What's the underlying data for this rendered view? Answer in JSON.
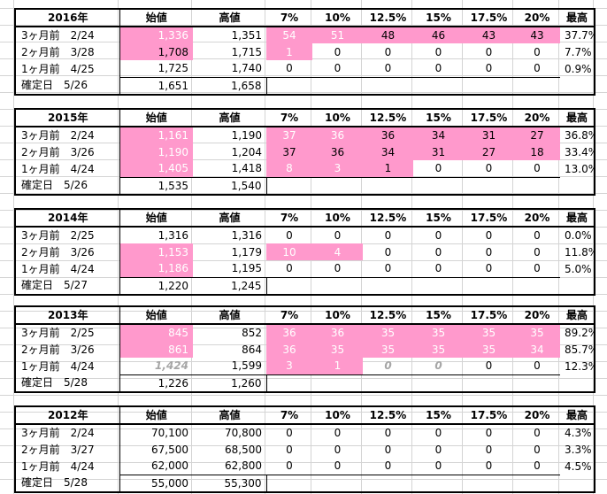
{
  "header": {
    "open_label": "始値",
    "high_label": "高値",
    "pct_labels": [
      "7%",
      "10%",
      "12.5%",
      "15%",
      "17.5%",
      "20%"
    ],
    "max_label": "最高"
  },
  "blocks": [
    {
      "year": "2016年",
      "rows": [
        {
          "label": "3ヶ月前　2/24",
          "open": "1,336",
          "high": "1,351",
          "p": [
            "54",
            "51",
            "48",
            "46",
            "43",
            "43"
          ],
          "max": "37.7%"
        },
        {
          "label": "2ヶ月前　3/28",
          "open": "1,708",
          "high": "1,715",
          "p": [
            "1",
            "0",
            "0",
            "0",
            "0",
            "0"
          ],
          "max": "7.7%"
        },
        {
          "label": "1ヶ月前　4/25",
          "open": "1,725",
          "high": "1,740",
          "p": [
            "0",
            "0",
            "0",
            "0",
            "0",
            "0"
          ],
          "max": "0.9%"
        },
        {
          "label": "確定日　5/26",
          "open": "1,651",
          "high": "1,658",
          "p": [
            "",
            "",
            "",
            "",
            "",
            ""
          ],
          "max": ""
        }
      ]
    },
    {
      "year": "2015年",
      "rows": [
        {
          "label": "3ヶ月前　2/24",
          "open": "1,161",
          "high": "1,190",
          "p": [
            "37",
            "36",
            "36",
            "34",
            "31",
            "27"
          ],
          "max": "36.8%"
        },
        {
          "label": "2ヶ月前　3/26",
          "open": "1,190",
          "high": "1,204",
          "p": [
            "37",
            "36",
            "34",
            "31",
            "27",
            "18"
          ],
          "max": "33.4%"
        },
        {
          "label": "1ヶ月前　4/24",
          "open": "1,405",
          "high": "1,418",
          "p": [
            "8",
            "3",
            "1",
            "0",
            "0",
            "0"
          ],
          "max": "13.0%"
        },
        {
          "label": "確定日　5/26",
          "open": "1,535",
          "high": "1,540",
          "p": [
            "",
            "",
            "",
            "",
            "",
            ""
          ],
          "max": ""
        }
      ]
    },
    {
      "year": "2014年",
      "rows": [
        {
          "label": "3ヶ月前　2/25",
          "open": "1,316",
          "high": "1,316",
          "p": [
            "0",
            "0",
            "0",
            "0",
            "0",
            "0"
          ],
          "max": "0.0%"
        },
        {
          "label": "2ヶ月前　3/26",
          "open": "1,153",
          "high": "1,179",
          "p": [
            "10",
            "4",
            "0",
            "0",
            "0",
            "0"
          ],
          "max": "11.8%"
        },
        {
          "label": "1ヶ月前　4/24",
          "open": "1,186",
          "high": "1,195",
          "p": [
            "0",
            "0",
            "0",
            "0",
            "0",
            "0"
          ],
          "max": "5.0%"
        },
        {
          "label": "確定日　5/27",
          "open": "1,220",
          "high": "1,245",
          "p": [
            "",
            "",
            "",
            "",
            "",
            ""
          ],
          "max": ""
        }
      ]
    },
    {
      "year": "2013年",
      "rows": [
        {
          "label": "3ヶ月前　2/25",
          "open": "845",
          "high": "852",
          "p": [
            "36",
            "36",
            "35",
            "35",
            "35",
            "35"
          ],
          "max": "89.2%"
        },
        {
          "label": "2ヶ月前　3/26",
          "open": "861",
          "high": "864",
          "p": [
            "36",
            "35",
            "35",
            "35",
            "35",
            "34"
          ],
          "max": "85.7%"
        },
        {
          "label": "1ヶ月前　4/24",
          "open": "1,424",
          "high": "1,599",
          "p": [
            "3",
            "1",
            "0",
            "0",
            "0",
            "0"
          ],
          "max": "12.3%"
        },
        {
          "label": "確定日　5/28",
          "open": "1,226",
          "high": "1,260",
          "p": [
            "",
            "",
            "",
            "",
            "",
            ""
          ],
          "max": ""
        }
      ]
    },
    {
      "year": "2012年",
      "rows": [
        {
          "label": "3ヶ月前　2/24",
          "open": "70,100",
          "high": "70,800",
          "p": [
            "0",
            "0",
            "0",
            "0",
            "0",
            "0"
          ],
          "max": "4.3%"
        },
        {
          "label": "2ヶ月前　3/27",
          "open": "67,500",
          "high": "68,500",
          "p": [
            "0",
            "0",
            "0",
            "0",
            "0",
            "0"
          ],
          "max": "3.3%"
        },
        {
          "label": "1ヶ月前　4/24",
          "open": "62,000",
          "high": "62,800",
          "p": [
            "0",
            "0",
            "0",
            "0",
            "0",
            "0"
          ],
          "max": "4.5%"
        },
        {
          "label": "確定日　5/28",
          "open": "55,000",
          "high": "55,300",
          "p": [
            "",
            "",
            "",
            "",
            "",
            ""
          ],
          "max": ""
        }
      ]
    }
  ]
}
